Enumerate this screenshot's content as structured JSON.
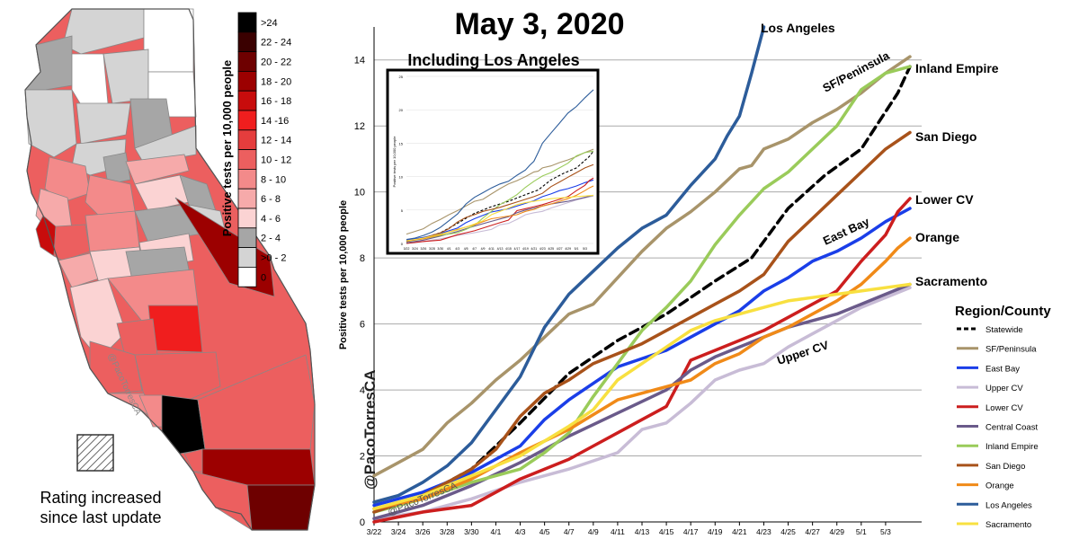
{
  "map": {
    "legend_title": "Positive tests per 10,000 people",
    "legend_bins": [
      {
        "label": ">24",
        "color": "#000000"
      },
      {
        "label": "22 - 24",
        "color": "#3a0000"
      },
      {
        "label": "20 - 22",
        "color": "#6e0000"
      },
      {
        "label": "18 - 20",
        "color": "#9c0000"
      },
      {
        "label": "16 - 18",
        "color": "#c80c0c"
      },
      {
        "label": "14 -16",
        "color": "#f01e1e"
      },
      {
        "label": "12 - 14",
        "color": "#e53d3d"
      },
      {
        "label": "10 - 12",
        "color": "#ec5f5f"
      },
      {
        "label": "8 - 10",
        "color": "#f38a8a"
      },
      {
        "label": "6 - 8",
        "color": "#f6aaaa"
      },
      {
        "label": "4 - 6",
        "color": "#fbd3d3"
      },
      {
        "label": "2 - 4",
        "color": "#a6a6a6"
      },
      {
        "label": ">0 - 2",
        "color": "#d4d4d4"
      },
      {
        "label": "0",
        "color": "#ffffff"
      }
    ],
    "hatch_caption_line1": "Rating increased",
    "hatch_caption_line2": "since last update",
    "watermark": "@PacoTorresCA"
  },
  "chart_data": {
    "type": "line",
    "title": "May 3, 2020",
    "ylabel": "Positive tests per 10,000 people",
    "xlabel": "",
    "ylim": [
      0,
      15
    ],
    "yticks": [
      0,
      2,
      4,
      6,
      8,
      10,
      12,
      14
    ],
    "grid": "horizontal",
    "x_tick_labels": [
      "3/22",
      "3/24",
      "3/26",
      "3/28",
      "3/30",
      "4/1",
      "4/3",
      "4/5",
      "4/7",
      "4/9",
      "4/11",
      "4/13",
      "4/15",
      "4/17",
      "4/19",
      "4/21",
      "4/23",
      "4/25",
      "4/27",
      "4/29",
      "5/1",
      "5/3"
    ],
    "legend_title": "Region/County",
    "legend_position": "right",
    "watermark": "@PacoTorresCA",
    "watermark_small": "@PacoTorresCA",
    "series": [
      {
        "name": "Statewide",
        "color": "#000000",
        "dashed": true,
        "points": [
          [
            0,
            0.3
          ],
          [
            4,
            0.8
          ],
          [
            8,
            1.6
          ],
          [
            12,
            3.0
          ],
          [
            16,
            4.5
          ],
          [
            20,
            5.5
          ],
          [
            24,
            6.3
          ],
          [
            28,
            7.3
          ],
          [
            31,
            8.0
          ],
          [
            34,
            9.5
          ],
          [
            37,
            10.5
          ],
          [
            40,
            11.3
          ],
          [
            43,
            13.0
          ],
          [
            44,
            13.8
          ]
        ]
      },
      {
        "name": "SF/Peninsula",
        "color": "#a8946a",
        "points": [
          [
            0,
            1.4
          ],
          [
            2,
            1.8
          ],
          [
            4,
            2.2
          ],
          [
            6,
            3.0
          ],
          [
            8,
            3.6
          ],
          [
            10,
            4.3
          ],
          [
            12,
            4.9
          ],
          [
            14,
            5.6
          ],
          [
            16,
            6.3
          ],
          [
            18,
            6.6
          ],
          [
            20,
            7.4
          ],
          [
            22,
            8.2
          ],
          [
            24,
            8.9
          ],
          [
            26,
            9.4
          ],
          [
            28,
            10.0
          ],
          [
            30,
            10.7
          ],
          [
            31,
            10.8
          ],
          [
            32,
            11.3
          ],
          [
            34,
            11.6
          ],
          [
            36,
            12.1
          ],
          [
            38,
            12.5
          ],
          [
            40,
            13.0
          ],
          [
            42,
            13.6
          ],
          [
            44,
            14.1
          ]
        ]
      },
      {
        "name": "East Bay",
        "color": "#1a3ee8",
        "points": [
          [
            0,
            0.5
          ],
          [
            4,
            0.9
          ],
          [
            8,
            1.5
          ],
          [
            12,
            2.3
          ],
          [
            14,
            3.1
          ],
          [
            16,
            3.7
          ],
          [
            20,
            4.7
          ],
          [
            24,
            5.2
          ],
          [
            28,
            6.0
          ],
          [
            30,
            6.4
          ],
          [
            32,
            7.0
          ],
          [
            34,
            7.4
          ],
          [
            36,
            7.9
          ],
          [
            38,
            8.2
          ],
          [
            40,
            8.6
          ],
          [
            42,
            9.1
          ],
          [
            44,
            9.5
          ]
        ]
      },
      {
        "name": "Upper CV",
        "color": "#c8bcd6",
        "points": [
          [
            0,
            0.1
          ],
          [
            4,
            0.3
          ],
          [
            8,
            0.7
          ],
          [
            12,
            1.2
          ],
          [
            16,
            1.6
          ],
          [
            20,
            2.1
          ],
          [
            22,
            2.8
          ],
          [
            24,
            3.0
          ],
          [
            26,
            3.6
          ],
          [
            28,
            4.3
          ],
          [
            30,
            4.6
          ],
          [
            32,
            4.8
          ],
          [
            34,
            5.3
          ],
          [
            36,
            5.7
          ],
          [
            38,
            6.1
          ],
          [
            40,
            6.5
          ],
          [
            42,
            6.8
          ],
          [
            44,
            7.1
          ]
        ]
      },
      {
        "name": "Lower CV",
        "color": "#cc1e1e",
        "points": [
          [
            0,
            0.0
          ],
          [
            4,
            0.3
          ],
          [
            8,
            0.5
          ],
          [
            10,
            0.9
          ],
          [
            12,
            1.3
          ],
          [
            14,
            1.6
          ],
          [
            16,
            1.9
          ],
          [
            18,
            2.3
          ],
          [
            20,
            2.7
          ],
          [
            22,
            3.1
          ],
          [
            24,
            3.5
          ],
          [
            26,
            4.9
          ],
          [
            28,
            5.2
          ],
          [
            30,
            5.5
          ],
          [
            32,
            5.8
          ],
          [
            34,
            6.2
          ],
          [
            36,
            6.6
          ],
          [
            38,
            7.0
          ],
          [
            40,
            7.9
          ],
          [
            42,
            8.7
          ],
          [
            43,
            9.4
          ],
          [
            44,
            9.8
          ]
        ]
      },
      {
        "name": "Central Coast",
        "color": "#6a5a8a",
        "points": [
          [
            0,
            0.1
          ],
          [
            4,
            0.5
          ],
          [
            8,
            1.1
          ],
          [
            12,
            1.8
          ],
          [
            16,
            2.6
          ],
          [
            20,
            3.3
          ],
          [
            24,
            4.0
          ],
          [
            26,
            4.6
          ],
          [
            28,
            5.0
          ],
          [
            30,
            5.3
          ],
          [
            32,
            5.6
          ],
          [
            34,
            5.9
          ],
          [
            36,
            6.1
          ],
          [
            38,
            6.3
          ],
          [
            40,
            6.6
          ],
          [
            42,
            6.9
          ],
          [
            44,
            7.2
          ]
        ]
      },
      {
        "name": "Inland Empire",
        "color": "#9acb5a",
        "points": [
          [
            0,
            0.3
          ],
          [
            4,
            0.7
          ],
          [
            8,
            1.2
          ],
          [
            12,
            1.6
          ],
          [
            14,
            2.1
          ],
          [
            16,
            2.7
          ],
          [
            18,
            3.8
          ],
          [
            20,
            4.8
          ],
          [
            22,
            5.8
          ],
          [
            24,
            6.5
          ],
          [
            26,
            7.3
          ],
          [
            28,
            8.4
          ],
          [
            30,
            9.3
          ],
          [
            32,
            10.1
          ],
          [
            34,
            10.6
          ],
          [
            36,
            11.3
          ],
          [
            38,
            12.0
          ],
          [
            40,
            13.1
          ],
          [
            42,
            13.6
          ],
          [
            44,
            13.8
          ]
        ]
      },
      {
        "name": "San Diego",
        "color": "#a8521a",
        "points": [
          [
            0,
            0.3
          ],
          [
            4,
            0.8
          ],
          [
            8,
            1.6
          ],
          [
            10,
            2.2
          ],
          [
            12,
            3.2
          ],
          [
            14,
            3.9
          ],
          [
            16,
            4.3
          ],
          [
            18,
            4.8
          ],
          [
            20,
            5.1
          ],
          [
            22,
            5.4
          ],
          [
            24,
            5.8
          ],
          [
            26,
            6.2
          ],
          [
            28,
            6.6
          ],
          [
            30,
            7.0
          ],
          [
            32,
            7.5
          ],
          [
            34,
            8.5
          ],
          [
            36,
            9.2
          ],
          [
            38,
            9.9
          ],
          [
            40,
            10.6
          ],
          [
            42,
            11.3
          ],
          [
            44,
            11.8
          ]
        ]
      },
      {
        "name": "Orange",
        "color": "#f08a18",
        "points": [
          [
            0,
            0.4
          ],
          [
            4,
            0.7
          ],
          [
            8,
            1.3
          ],
          [
            12,
            2.1
          ],
          [
            16,
            2.8
          ],
          [
            20,
            3.7
          ],
          [
            22,
            3.9
          ],
          [
            24,
            4.1
          ],
          [
            26,
            4.3
          ],
          [
            28,
            4.8
          ],
          [
            30,
            5.1
          ],
          [
            32,
            5.6
          ],
          [
            34,
            5.9
          ],
          [
            36,
            6.3
          ],
          [
            38,
            6.7
          ],
          [
            40,
            7.2
          ],
          [
            42,
            7.9
          ],
          [
            43,
            8.3
          ],
          [
            44,
            8.6
          ]
        ]
      },
      {
        "name": "Los Angeles",
        "color": "#2c5c9a",
        "points": [
          [
            0,
            0.6
          ],
          [
            2,
            0.8
          ],
          [
            4,
            1.2
          ],
          [
            6,
            1.7
          ],
          [
            8,
            2.4
          ],
          [
            10,
            3.4
          ],
          [
            12,
            4.4
          ],
          [
            14,
            5.9
          ],
          [
            16,
            6.9
          ],
          [
            18,
            7.6
          ],
          [
            20,
            8.3
          ],
          [
            22,
            8.9
          ],
          [
            24,
            9.3
          ],
          [
            26,
            10.2
          ],
          [
            28,
            11.0
          ],
          [
            29,
            11.7
          ],
          [
            30,
            12.3
          ],
          [
            31,
            13.6
          ],
          [
            32,
            15.0
          ]
        ]
      },
      {
        "name": "Sacramento",
        "color": "#f8e040",
        "points": [
          [
            0,
            0.4
          ],
          [
            4,
            0.8
          ],
          [
            8,
            1.4
          ],
          [
            12,
            2.0
          ],
          [
            16,
            2.9
          ],
          [
            18,
            3.4
          ],
          [
            20,
            4.3
          ],
          [
            22,
            4.8
          ],
          [
            24,
            5.3
          ],
          [
            26,
            5.8
          ],
          [
            28,
            6.1
          ],
          [
            30,
            6.3
          ],
          [
            32,
            6.5
          ],
          [
            34,
            6.7
          ],
          [
            36,
            6.8
          ],
          [
            38,
            6.9
          ],
          [
            40,
            7.0
          ],
          [
            42,
            7.1
          ],
          [
            44,
            7.2
          ]
        ]
      }
    ],
    "line_labels": [
      {
        "text": "Los Angeles",
        "series": "Los Angeles"
      },
      {
        "text": "SF/Peninsula",
        "series": "SF/Peninsula"
      },
      {
        "text": "Inland Empire",
        "series": "Inland Empire"
      },
      {
        "text": "San Diego",
        "series": "San Diego"
      },
      {
        "text": "Lower CV",
        "series": "Lower CV"
      },
      {
        "text": "East Bay",
        "series": "East Bay"
      },
      {
        "text": "Orange",
        "series": "Orange"
      },
      {
        "text": "Sacramento",
        "series": "Sacramento"
      },
      {
        "text": "Upper CV",
        "series": "Upper CV"
      }
    ],
    "inset": {
      "title": "Including Los Angeles",
      "ylabel": "Positive tests per 10,000 people",
      "ylim": [
        0,
        25
      ],
      "yticks": [
        0,
        5,
        10,
        15,
        20,
        25
      ],
      "x_tick_labels": [
        "3/22",
        "3/24",
        "3/26",
        "3/28",
        "3/30",
        "4/1",
        "4/3",
        "4/5",
        "4/7",
        "4/9",
        "4/11",
        "4/13",
        "4/15",
        "4/17",
        "4/19",
        "4/21",
        "4/23",
        "4/25",
        "4/27",
        "4/29",
        "5/1",
        "5/3"
      ]
    }
  }
}
